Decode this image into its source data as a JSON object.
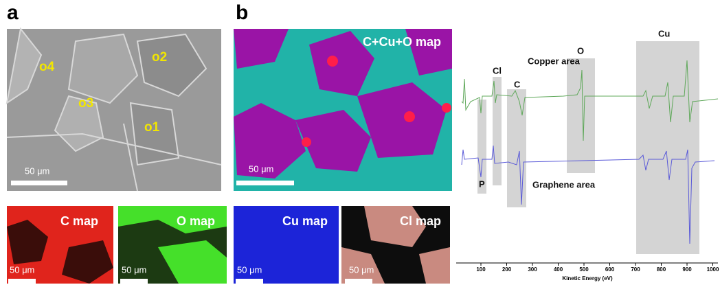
{
  "panel_a": {
    "label": "a",
    "points": [
      "o1",
      "o2",
      "o3",
      "o4"
    ],
    "scale_bar": "50 μm"
  },
  "panel_b": {
    "label": "b",
    "map_title": "C+Cu+O map",
    "scale_bar": "50 μm"
  },
  "element_maps": [
    {
      "title": "C map",
      "scale_bar": "50 μm"
    },
    {
      "title": "O map",
      "scale_bar": "50 μm"
    },
    {
      "title": "Cu map",
      "scale_bar": "50 μm"
    },
    {
      "title": "Cl map",
      "scale_bar": "50 μm"
    }
  ],
  "spectrum": {
    "xlim": [
      20,
      1020
    ],
    "xticks": [
      100,
      200,
      300,
      400,
      500,
      600,
      700,
      800,
      900,
      1000
    ],
    "x_label": "Kinetic Energy (eV)",
    "region_labels": [
      "Copper area",
      "Graphene area"
    ],
    "peak_labels": [
      "Cu",
      "O",
      "Cl",
      "C",
      "P"
    ]
  }
}
